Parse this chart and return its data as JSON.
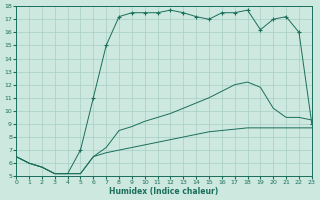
{
  "xlabel": "Humidex (Indice chaleur)",
  "bg_color": "#cde8df",
  "grid_color": "#a8cfc4",
  "line_color": "#1a6e5a",
  "xlim": [
    0,
    23
  ],
  "ylim": [
    5,
    18
  ],
  "curve1_x": [
    0,
    1,
    2,
    3,
    4,
    5,
    6,
    7,
    8,
    9,
    10,
    11,
    12,
    13,
    14,
    15,
    16,
    17,
    18,
    19,
    20,
    21,
    22,
    23
  ],
  "curve1_y": [
    6.5,
    6.0,
    5.7,
    5.2,
    5.2,
    5.2,
    6.5,
    7.2,
    8.5,
    8.8,
    9.2,
    9.5,
    9.8,
    10.2,
    10.6,
    11.0,
    11.5,
    12.0,
    12.2,
    11.8,
    10.2,
    9.5,
    9.5,
    9.3
  ],
  "curve2_x": [
    0,
    1,
    2,
    3,
    4,
    5,
    6,
    7,
    8,
    9,
    10,
    11,
    12,
    13,
    14,
    15,
    16,
    17,
    18,
    19,
    20,
    21,
    22,
    23
  ],
  "curve2_y": [
    6.5,
    6.0,
    5.7,
    5.2,
    5.2,
    5.2,
    6.5,
    6.8,
    7.0,
    7.2,
    7.4,
    7.6,
    7.8,
    8.0,
    8.2,
    8.4,
    8.5,
    8.6,
    8.7,
    8.7,
    8.7,
    8.7,
    8.7,
    8.7
  ],
  "curve3_x": [
    0,
    1,
    2,
    3,
    4,
    5,
    6,
    7,
    8,
    9,
    10,
    11,
    12,
    13,
    14,
    15,
    16,
    17,
    18,
    19,
    20,
    21,
    22,
    23
  ],
  "curve3_y": [
    6.5,
    6.0,
    5.7,
    5.2,
    5.2,
    7.0,
    11.0,
    15.0,
    17.2,
    17.5,
    17.5,
    17.5,
    17.7,
    17.5,
    17.2,
    17.0,
    17.5,
    17.5,
    17.7,
    16.2,
    17.0,
    17.2,
    16.0,
    9.0
  ],
  "curve3_marker_start": 5
}
